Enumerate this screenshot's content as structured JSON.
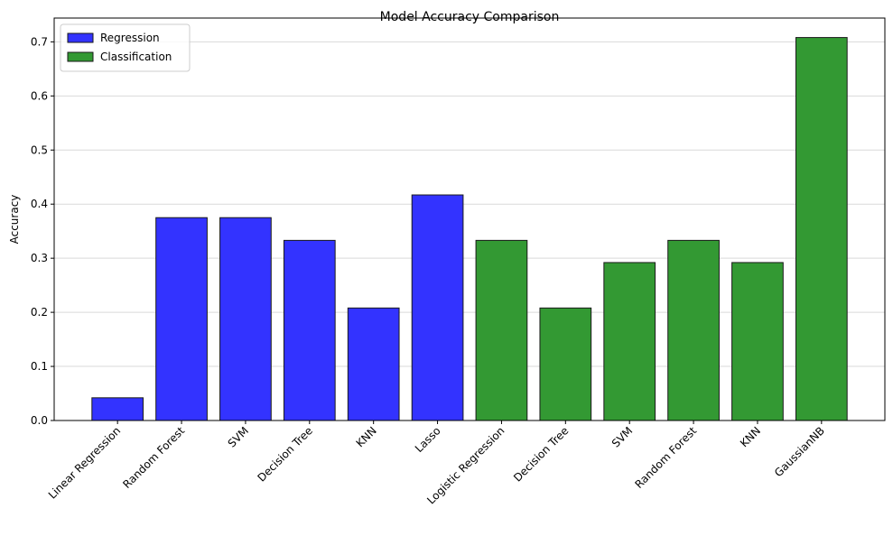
{
  "chart_data": {
    "type": "bar",
    "title": "Model Accuracy Comparison",
    "y_label": "Accuracy",
    "categories": [
      "Linear Regression",
      "Random Forest",
      "SVM",
      "Decision Tree",
      "KNN",
      "Lasso",
      "Logistic Regression",
      "Decision Tree",
      "SVM",
      "Random Forest",
      "KNN",
      "GaussianNB"
    ],
    "series": [
      {
        "name": "Regression",
        "color": "#3333ff",
        "values": [
          0.042,
          0.375,
          0.375,
          0.333,
          0.208,
          0.417,
          null,
          null,
          null,
          null,
          null,
          null
        ]
      },
      {
        "name": "Classification",
        "color": "#339933",
        "values": [
          null,
          null,
          null,
          null,
          null,
          null,
          0.333,
          0.208,
          0.292,
          0.333,
          0.292,
          0.708
        ]
      }
    ],
    "ylim": [
      0,
      0.744
    ],
    "yticks": [
      {
        "value": 0,
        "label": "0.0"
      },
      0.1,
      0.2,
      0.3,
      0.4,
      0.5,
      0.6,
      0.7
    ],
    "grid": true,
    "legend": "upper-left"
  }
}
